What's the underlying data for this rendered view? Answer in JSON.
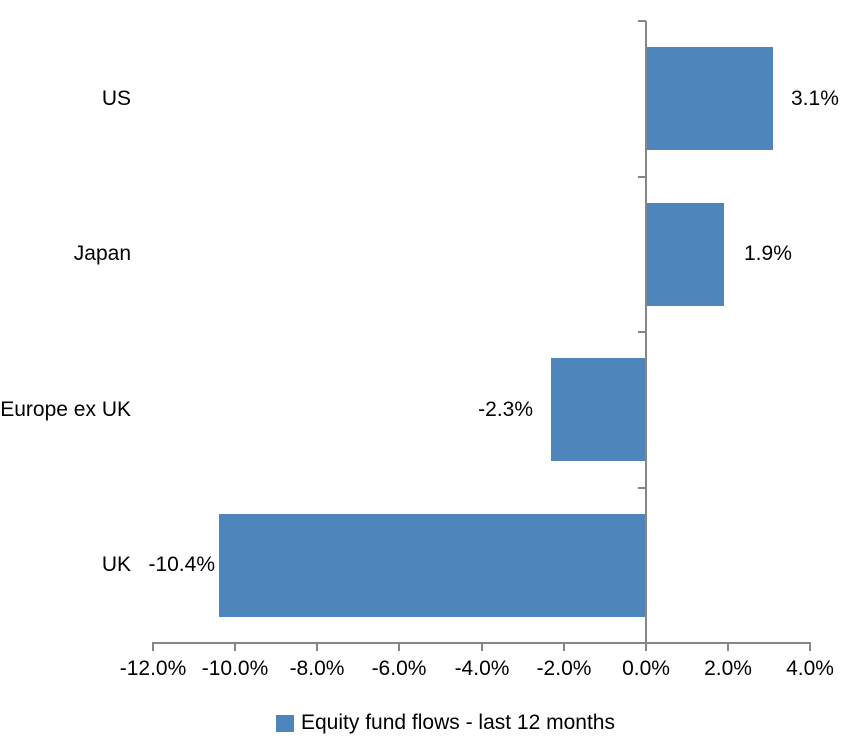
{
  "chart_data": {
    "type": "bar",
    "orientation": "horizontal",
    "title": "",
    "categories": [
      "US",
      "Japan",
      "Europe ex UK",
      "UK"
    ],
    "values": [
      3.1,
      1.9,
      -2.3,
      -10.4
    ],
    "value_labels": [
      "3.1%",
      "1.9%",
      "-2.3%",
      "-10.4%"
    ],
    "series_name": "Equity fund flows - last 12 months",
    "legend": "Equity fund flows - last 12 months",
    "legend_position": "bottom",
    "xlim": [
      -12,
      4
    ],
    "x_ticks": [
      -12,
      -10,
      -8,
      -6,
      -4,
      -2,
      0,
      2,
      4
    ],
    "x_tick_labels": [
      "-12.0%",
      "-10.0%",
      "-8.0%",
      "-6.0%",
      "-4.0%",
      "-2.0%",
      "0.0%",
      "2.0%",
      "4.0%"
    ],
    "grid": "off",
    "bar_color": "#4E86BC",
    "axis_color": "#868686",
    "text_color": "#000000"
  }
}
